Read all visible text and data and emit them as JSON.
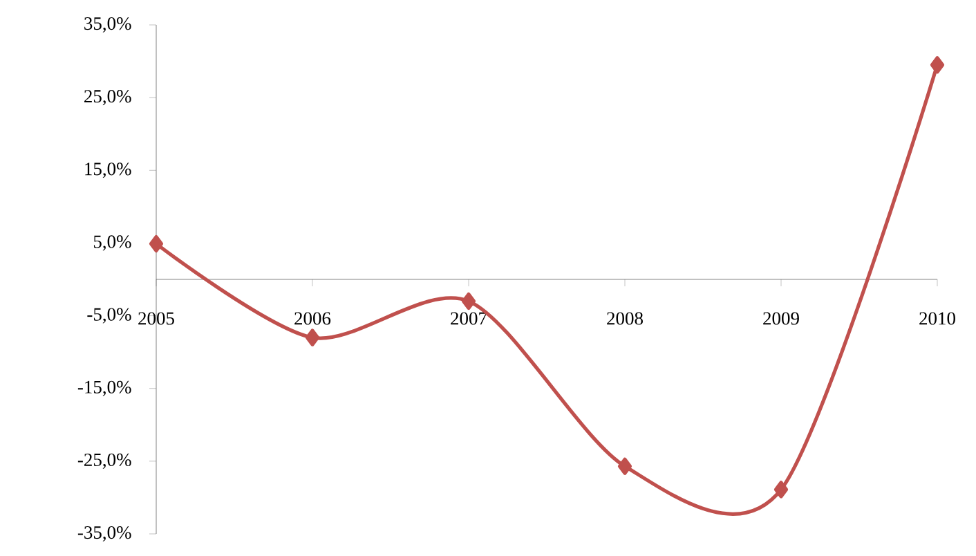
{
  "chart_data": {
    "type": "line",
    "categories": [
      "2005",
      "2006",
      "2007",
      "2008",
      "2009",
      "2010"
    ],
    "values": [
      4.9,
      -8.0,
      -3.0,
      -25.7,
      -28.9,
      29.5
    ],
    "color": "#c0504d",
    "marker": "diamond",
    "line_style": "solid",
    "ylim": [
      -35,
      35
    ],
    "yticks": [
      {
        "value": -35,
        "label": "-35,0%"
      },
      {
        "value": -25,
        "label": "-25,0%"
      },
      {
        "value": -15,
        "label": "-15,0%"
      },
      {
        "value": -5,
        "label": "-5,0%"
      },
      {
        "value": 5,
        "label": "5,0%"
      },
      {
        "value": 15,
        "label": "15,0%"
      },
      {
        "value": 25,
        "label": "25,0%"
      },
      {
        "value": 35,
        "label": "35,0%"
      }
    ],
    "grid": false
  }
}
